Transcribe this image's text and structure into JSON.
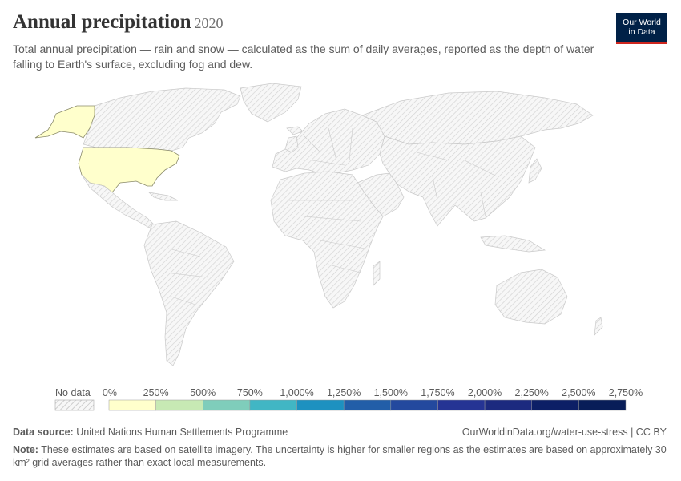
{
  "header": {
    "title": "Annual precipitation",
    "year": "2020",
    "subtitle": "Total annual precipitation — rain and snow — calculated as the sum of daily averages, reported as the depth of water falling to Earth's surface, excluding fog and dew.",
    "logo_line1": "Our World",
    "logo_line2": "in Data"
  },
  "map": {
    "highlighted_region": "United States",
    "highlight_color": "#ffffcc",
    "no_data_pattern": "hatched-grey"
  },
  "legend": {
    "no_data_label": "No data",
    "bins": [
      {
        "label": "0%",
        "color": "#ffffcc"
      },
      {
        "label": "250%",
        "color": "#eef8b7"
      },
      {
        "label": "500%",
        "color": "#c7e9b4"
      },
      {
        "label": "750%",
        "color": "#7fcdbb"
      },
      {
        "label": "1,000%",
        "color": "#41b6c4"
      },
      {
        "label": "1,250%",
        "color": "#1d91c0"
      },
      {
        "label": "1,500%",
        "color": "#225ea8"
      },
      {
        "label": "1,750%",
        "color": "#23499e"
      },
      {
        "label": "2,000%",
        "color": "#253494"
      },
      {
        "label": "2,250%",
        "color": "#1c2a7f"
      },
      {
        "label": "2,500%",
        "color": "#0c1f66"
      },
      {
        "label": "2,750%",
        "color": ""
      }
    ],
    "last_color": "#081d58"
  },
  "footer": {
    "source_label": "Data source:",
    "source_text": "United Nations Human Settlements Programme",
    "url": "OurWorldinData.org/water-use-stress | CC BY",
    "note_label": "Note:",
    "note_text": "These estimates are based on satellite imagery. The uncertainty is higher for smaller regions as the estimates are based on approximately 30 km² grid averages rather than exact local measurements."
  }
}
